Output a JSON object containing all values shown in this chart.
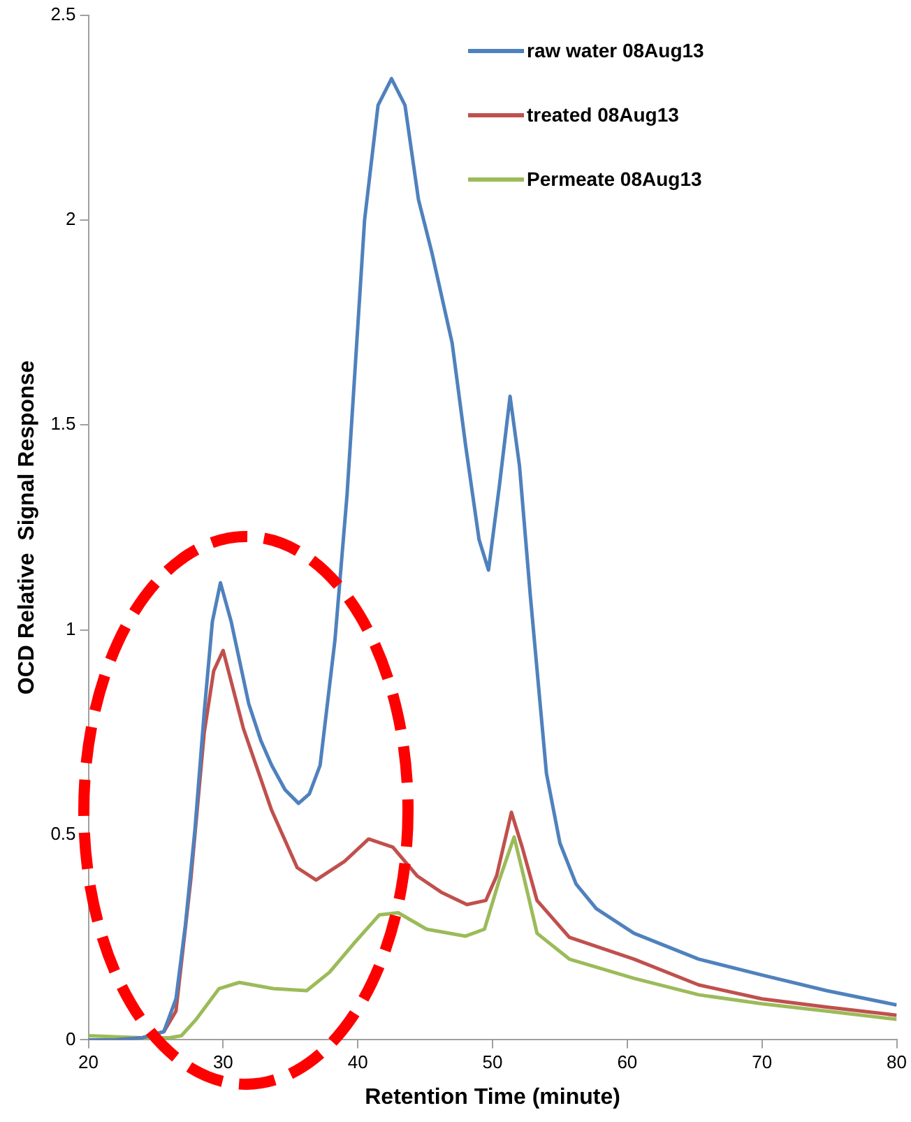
{
  "chart_data": {
    "type": "line",
    "xlabel": "Retention Time (minute)",
    "ylabel": "OCD Relative  Signal Response",
    "xlim": [
      20,
      80
    ],
    "xticks": [
      20,
      30,
      40,
      50,
      60,
      70,
      80
    ],
    "ylim": [
      0,
      2.5
    ],
    "yticks": [
      0,
      0.5,
      1,
      1.5,
      2,
      2.5
    ],
    "grid": false,
    "legend": "top right",
    "marker": "none",
    "line_style": "solid",
    "series": [
      {
        "name": "raw water 08Aug13",
        "color": "#4f81bd",
        "x": [
          20,
          22,
          24,
          25.6,
          26.5,
          27.2,
          27.9,
          28.6,
          29.2,
          29.8,
          30.6,
          31.9,
          32.8,
          33.6,
          34.6,
          35.6,
          36.4,
          37.2,
          38.3,
          39.2,
          40.5,
          41.5,
          42.5,
          43.5,
          44.5,
          45.5,
          47,
          48,
          49,
          49.7,
          50.5,
          51.3,
          52,
          52.8,
          54,
          55,
          56.2,
          57.7,
          60.5,
          65.3,
          70,
          74.8,
          80
        ],
        "values": [
          0,
          0,
          0.005,
          0.02,
          0.1,
          0.28,
          0.51,
          0.8,
          1.02,
          1.115,
          1.02,
          0.82,
          0.73,
          0.67,
          0.61,
          0.577,
          0.6,
          0.67,
          0.975,
          1.33,
          2.0,
          2.28,
          2.345,
          2.28,
          2.05,
          1.92,
          1.7,
          1.45,
          1.22,
          1.146,
          1.35,
          1.57,
          1.4,
          1.085,
          0.65,
          0.48,
          0.38,
          0.32,
          0.26,
          0.197,
          0.158,
          0.12,
          0.085
        ]
      },
      {
        "name": "treated 08Aug13",
        "color": "#c0504d",
        "x": [
          20,
          22,
          24,
          25.6,
          26.5,
          27.6,
          28.6,
          29.3,
          30,
          31.5,
          33.6,
          35.5,
          36.9,
          39,
          40.8,
          42.6,
          44.4,
          46.2,
          48.1,
          49.5,
          50.3,
          51.4,
          52.2,
          53.3,
          55.7,
          60.5,
          65.3,
          70,
          74.8,
          80
        ],
        "values": [
          0,
          0,
          0.005,
          0.02,
          0.07,
          0.39,
          0.75,
          0.9,
          0.95,
          0.76,
          0.56,
          0.42,
          0.39,
          0.435,
          0.49,
          0.47,
          0.4,
          0.36,
          0.33,
          0.34,
          0.4,
          0.555,
          0.47,
          0.34,
          0.25,
          0.197,
          0.134,
          0.1,
          0.08,
          0.06
        ]
      },
      {
        "name": "Permeate 08Aug13",
        "color": "#9bbb59",
        "x": [
          20,
          24,
          26,
          26.9,
          28,
          29.7,
          31.2,
          33.7,
          36.2,
          37.9,
          39.7,
          41.6,
          43,
          45.1,
          48,
          49.4,
          50.5,
          51.6,
          52.3,
          53.3,
          55.7,
          60.5,
          65.3,
          70,
          74.8,
          80
        ],
        "values": [
          0.01,
          0.005,
          0.005,
          0.01,
          0.05,
          0.125,
          0.14,
          0.125,
          0.12,
          0.165,
          0.235,
          0.305,
          0.31,
          0.27,
          0.253,
          0.27,
          0.39,
          0.495,
          0.4,
          0.26,
          0.197,
          0.15,
          0.11,
          0.088,
          0.07,
          0.05
        ]
      }
    ]
  }
}
